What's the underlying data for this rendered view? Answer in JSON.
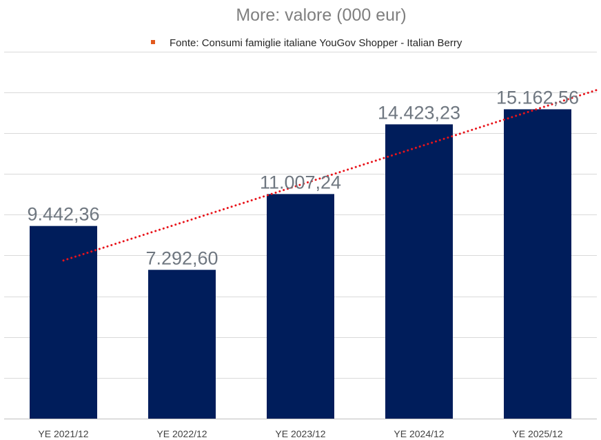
{
  "chart_data": {
    "type": "bar",
    "title": "More: valore (000 eur)",
    "legend": {
      "label": "Fonte: Consumi famiglie italiane YouGov Shopper - Italian Berry",
      "placement": "top-center"
    },
    "categories": [
      "YE 2021/12",
      "YE 2022/12",
      "YE 2023/12",
      "YE 2024/12",
      "YE 2025/12"
    ],
    "values": [
      9442.36,
      7292.6,
      11007.24,
      14423.23,
      15162.56
    ],
    "data_labels": [
      "9.442,36",
      "7.292,60",
      "11.007,24",
      "14.423,23",
      "15.162,56"
    ],
    "trendline": {
      "type": "linear",
      "style": "dotted"
    },
    "xlabel": "",
    "ylabel": "",
    "ylim": [
      0,
      18000
    ],
    "grid": true,
    "gridline_step": 2000
  },
  "colors": {
    "bar": "#001d5b",
    "trendline": "#e8141b",
    "legend_marker": "#e2591e",
    "gridline": "#d9d9d9",
    "axis": "#bfbfbf"
  }
}
